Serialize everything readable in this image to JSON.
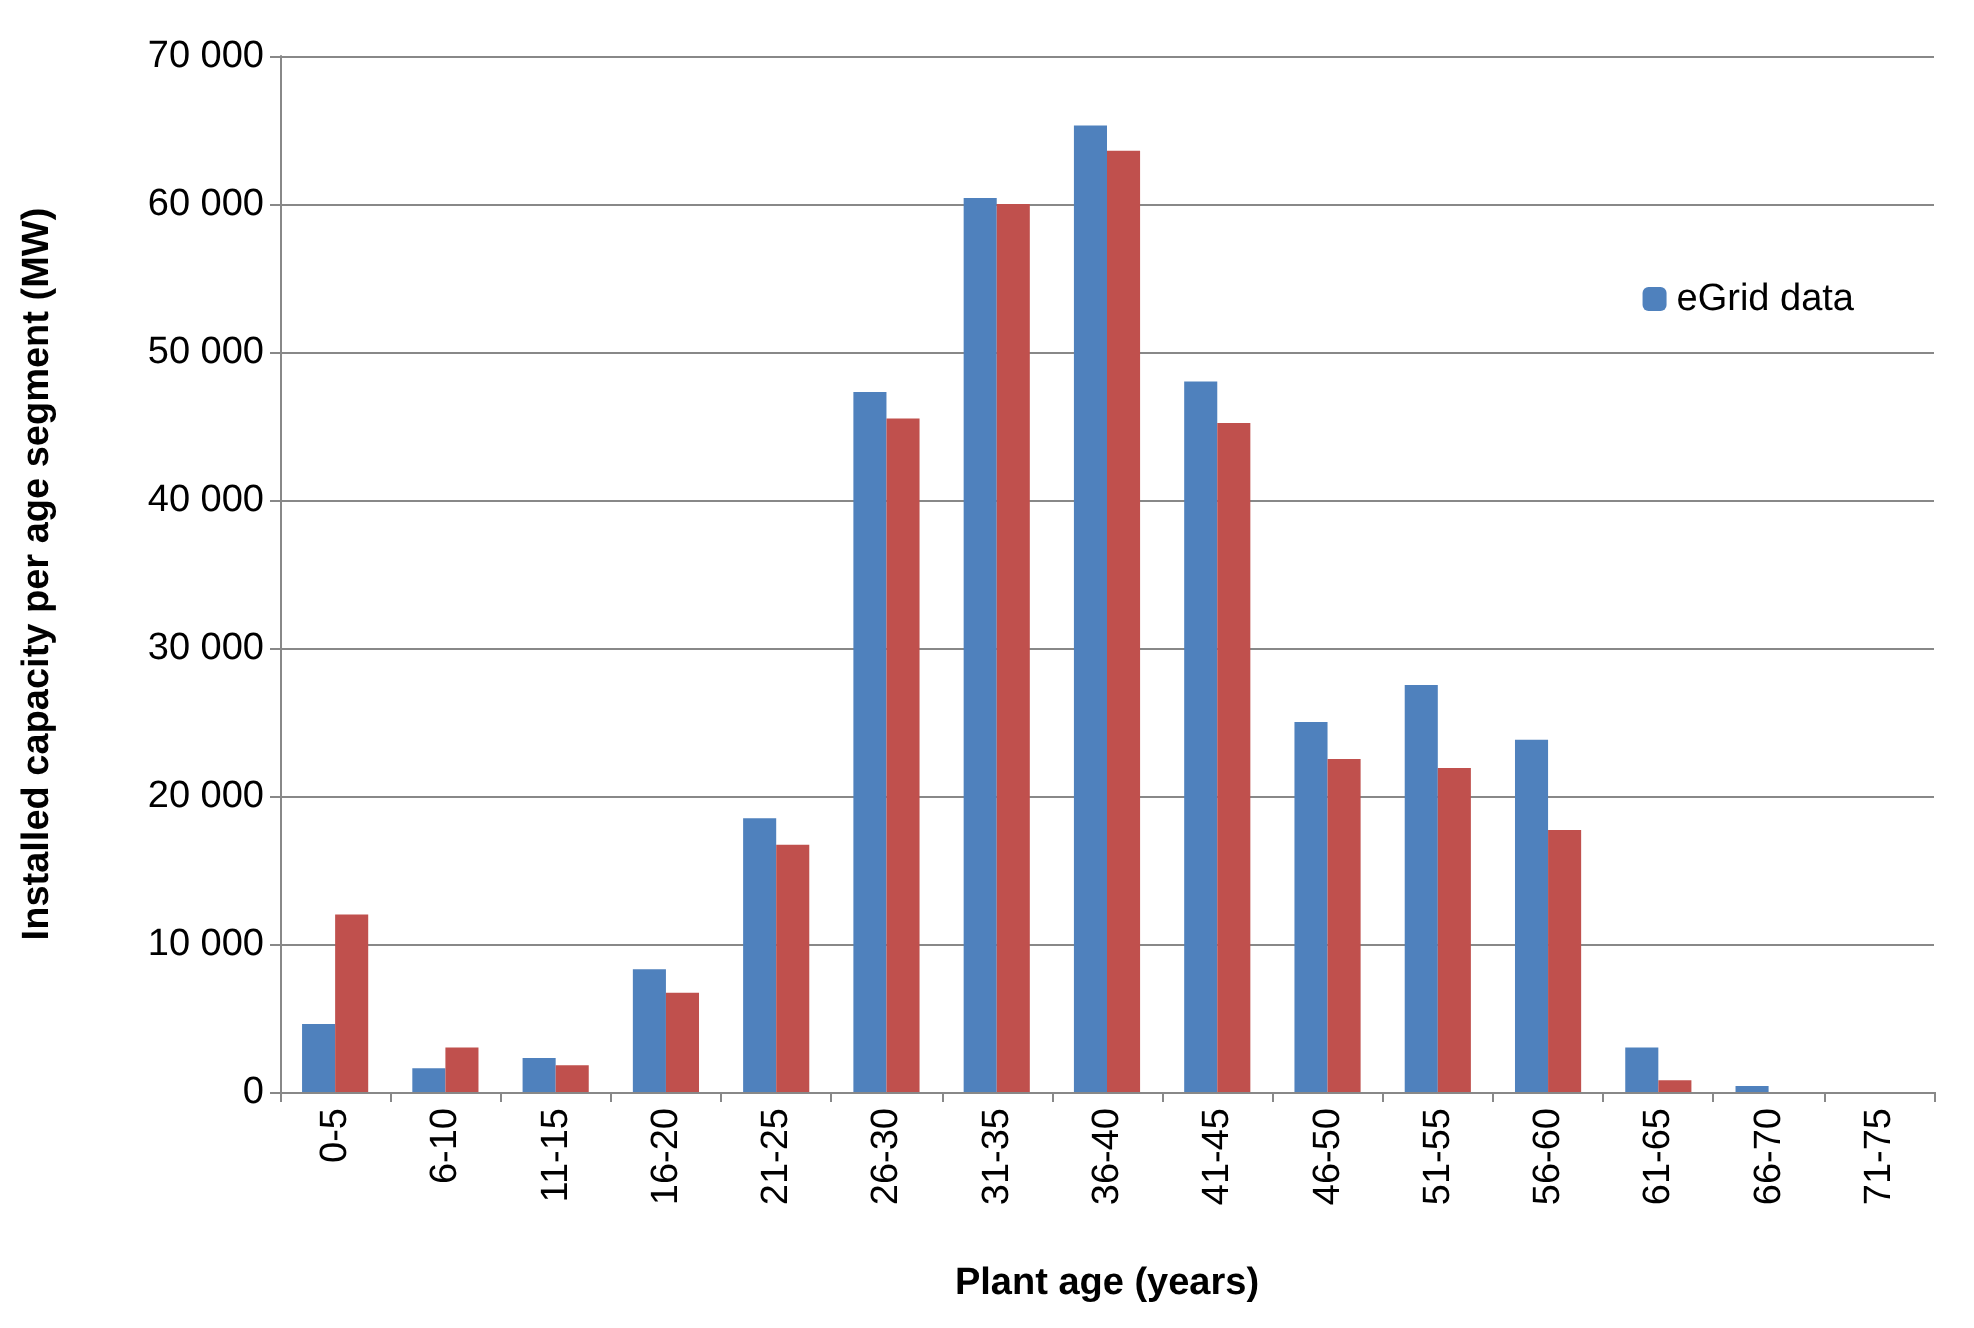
{
  "chart_data": {
    "type": "bar",
    "xlabel": "Plant age (years)",
    "ylabel": "Installed capacity per age segment (MW)",
    "categories": [
      "0-5",
      "6-10",
      "11-15",
      "16-20",
      "21-25",
      "26-30",
      "31-35",
      "36-40",
      "41-45",
      "46-50",
      "51-55",
      "56-60",
      "61-65",
      "66-70",
      "71-75"
    ],
    "series": [
      {
        "name": "eGrid data",
        "color": "#4f81bd",
        "values": [
          4600,
          1600,
          2300,
          8300,
          18500,
          47300,
          60400,
          65300,
          48000,
          25000,
          27500,
          23800,
          3000,
          400,
          0
        ]
      },
      {
        "color": "#c0504d",
        "values": [
          12000,
          3000,
          1800,
          6700,
          16700,
          45500,
          60000,
          63600,
          45200,
          22500,
          21900,
          17700,
          800,
          0,
          0
        ]
      }
    ],
    "ylim": [
      0,
      70000
    ],
    "yticks": [
      {
        "value": 0,
        "label": "0"
      },
      {
        "value": 10000,
        "label": "10 000"
      },
      {
        "value": 20000,
        "label": "20 000"
      },
      {
        "value": 30000,
        "label": "30 000"
      },
      {
        "value": 40000,
        "label": "40 000"
      },
      {
        "value": 50000,
        "label": "50 000"
      },
      {
        "value": 60000,
        "label": "60 000"
      },
      {
        "value": 70000,
        "label": "70 000"
      }
    ],
    "grid": "y",
    "legend": "top right"
  }
}
